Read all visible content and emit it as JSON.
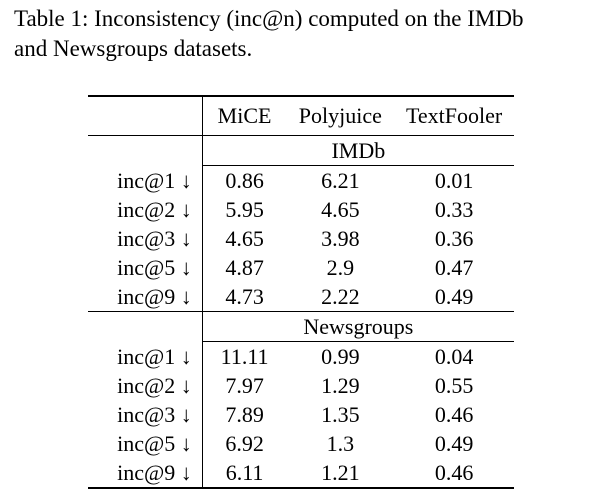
{
  "caption": {
    "line1": "Table 1: Inconsistency (inc@n) computed on the IMDb",
    "line2": "and Newsgroups datasets."
  },
  "table": {
    "columns": [
      "MiCE",
      "Polyjuice",
      "TextFooler"
    ],
    "sections": [
      {
        "name": "IMDb",
        "rows": [
          {
            "label": "inc@1 ↓",
            "values": [
              "0.86",
              "6.21",
              "0.01"
            ]
          },
          {
            "label": "inc@2 ↓",
            "values": [
              "5.95",
              "4.65",
              "0.33"
            ]
          },
          {
            "label": "inc@3 ↓",
            "values": [
              "4.65",
              "3.98",
              "0.36"
            ]
          },
          {
            "label": "inc@5 ↓",
            "values": [
              "4.87",
              "2.9",
              "0.47"
            ]
          },
          {
            "label": "inc@9 ↓",
            "values": [
              "4.73",
              "2.22",
              "0.49"
            ]
          }
        ]
      },
      {
        "name": "Newsgroups",
        "rows": [
          {
            "label": "inc@1 ↓",
            "values": [
              "11.11",
              "0.99",
              "0.04"
            ]
          },
          {
            "label": "inc@2 ↓",
            "values": [
              "7.97",
              "1.29",
              "0.55"
            ]
          },
          {
            "label": "inc@3 ↓",
            "values": [
              "7.89",
              "1.35",
              "0.46"
            ]
          },
          {
            "label": "inc@5 ↓",
            "values": [
              "6.92",
              "1.3",
              "0.49"
            ]
          },
          {
            "label": "inc@9 ↓",
            "values": [
              "6.11",
              "1.21",
              "0.46"
            ]
          }
        ]
      }
    ]
  }
}
